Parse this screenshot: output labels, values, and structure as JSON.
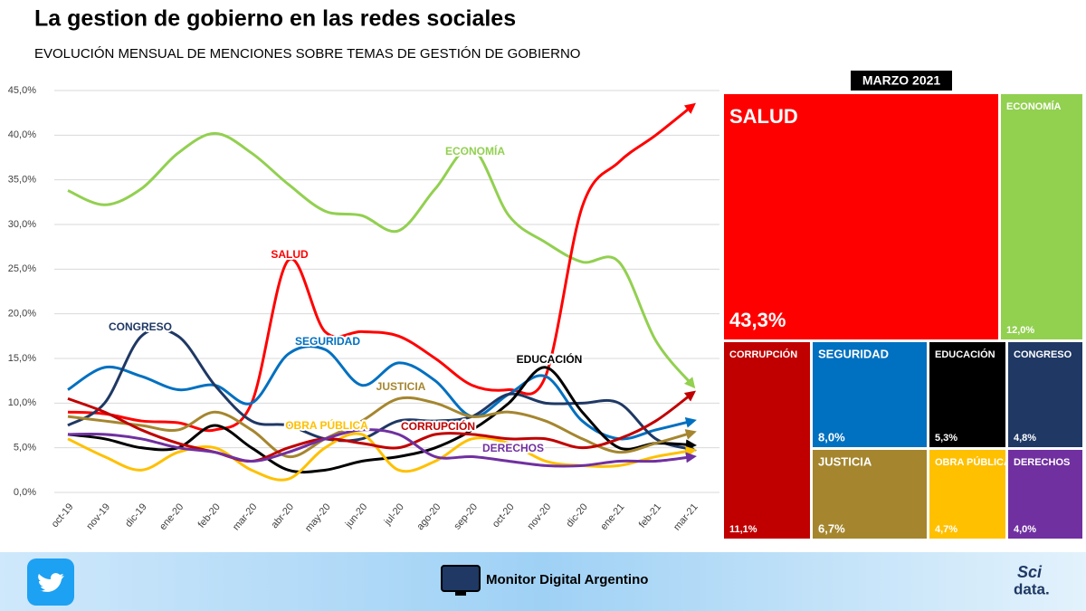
{
  "chart_data": [
    {
      "type": "line",
      "title": "La gestion de gobierno en las redes sociales",
      "subtitle": "EVOLUCIÓN MENSUAL DE MENCIONES SOBRE TEMAS DE GESTIÓN DE GOBIERNO",
      "categories": [
        "oct-19",
        "nov-19",
        "dic-19",
        "ene-20",
        "feb-20",
        "mar-20",
        "abr-20",
        "may-20",
        "jun-20",
        "jul-20",
        "ago-20",
        "sep-20",
        "oct-20",
        "nov-20",
        "dic-20",
        "ene-21",
        "feb-21",
        "mar-21"
      ],
      "ylim": [
        0,
        45
      ],
      "yticks": [
        {
          "value": 0,
          "label": "0,0%"
        },
        {
          "value": 5,
          "label": "5,0%"
        },
        {
          "value": 10,
          "label": "10,0%"
        },
        {
          "value": 15,
          "label": "15,0%"
        },
        {
          "value": 20,
          "label": "20,0%"
        },
        {
          "value": 25,
          "label": "25,0%"
        },
        {
          "value": 30,
          "label": "30,0%"
        },
        {
          "value": 35,
          "label": "35,0%"
        },
        {
          "value": 40,
          "label": "40,0%"
        },
        {
          "value": 45,
          "label": "45,0%"
        }
      ],
      "grid": true,
      "series": [
        {
          "name": "ECONOMÍA",
          "color": "#92d050",
          "values": [
            33.8,
            32.2,
            34,
            38,
            40.2,
            38,
            34.5,
            31.5,
            31,
            29.3,
            34,
            38.5,
            31,
            28,
            25.8,
            25.8,
            17,
            12.0
          ]
        },
        {
          "name": "SALUD",
          "color": "#ff0000",
          "values": [
            9,
            8.8,
            8,
            7.8,
            7,
            10,
            26,
            18,
            18,
            17.5,
            15,
            12,
            11.5,
            13,
            32,
            37,
            40,
            43.3
          ]
        },
        {
          "name": "SEGURIDAD",
          "color": "#0070c0",
          "values": [
            11.5,
            14,
            13,
            11.5,
            12,
            10,
            15.5,
            16,
            12,
            14.5,
            12.5,
            8.5,
            11,
            13,
            8,
            6,
            7,
            8.0
          ]
        },
        {
          "name": "CONGRESO",
          "color": "#1f3864",
          "values": [
            7.5,
            10,
            17.5,
            17.5,
            12,
            8,
            7.5,
            6,
            6,
            8,
            8,
            8.5,
            11,
            10,
            10,
            10,
            6,
            4.8
          ]
        },
        {
          "name": "EDUCACIÓN",
          "color": "#000000",
          "values": [
            6.5,
            6,
            5,
            5,
            7.5,
            5,
            2.5,
            2.5,
            3.5,
            4,
            5,
            7,
            10,
            14,
            9,
            5,
            5.5,
            5.3
          ]
        },
        {
          "name": "JUSTICIA",
          "color": "#a5862f",
          "values": [
            8.5,
            8,
            7.5,
            7,
            9,
            7,
            4,
            6,
            8,
            10.5,
            10,
            8.5,
            9,
            8,
            6,
            4.5,
            5.5,
            6.7
          ]
        },
        {
          "name": "OBRA PÚBLICA",
          "color": "#ffc000",
          "values": [
            6,
            4,
            2.5,
            4.5,
            5,
            2.5,
            1.5,
            5,
            6.5,
            2.5,
            3.5,
            6,
            5.5,
            3.5,
            3,
            3,
            4,
            4.7
          ]
        },
        {
          "name": "CORRUPCIÓN",
          "color": "#c00000",
          "values": [
            10.5,
            9,
            7,
            5.5,
            4.5,
            3.5,
            5,
            6,
            5.5,
            5,
            6.5,
            6.5,
            6,
            6,
            5,
            6,
            8,
            11.1
          ]
        },
        {
          "name": "DERECHOS",
          "color": "#7030a0",
          "values": [
            6.5,
            6.5,
            6,
            5,
            4.5,
            3.5,
            4.5,
            6,
            7,
            6.5,
            4,
            4,
            3.5,
            3,
            3,
            3.5,
            3.5,
            4.0
          ]
        }
      ]
    },
    {
      "type": "treemap",
      "title": "MARZO 2021",
      "categories": [
        "SALUD",
        "ECONOMÍA",
        "CORRUPCIÓN",
        "SEGURIDAD",
        "EDUCACIÓN",
        "CONGRESO",
        "JUSTICIA",
        "OBRA PÚBLICA",
        "DERECHOS"
      ],
      "values": [
        43.3,
        12.0,
        11.1,
        8.0,
        5.3,
        4.8,
        6.7,
        4.7,
        4.0
      ],
      "value_labels": [
        "43,3%",
        "12,0%",
        "11,1%",
        "8,0%",
        "5,3%",
        "4,8%",
        "6,7%",
        "4,7%",
        "4,0%"
      ],
      "colors": [
        "#ff0000",
        "#92d050",
        "#c00000",
        "#0070c0",
        "#000000",
        "#1f3864",
        "#a5862f",
        "#ffc000",
        "#7030a0"
      ]
    }
  ],
  "footer": {
    "brand": "Monitor Digital Argentino",
    "logo_top": "Sci",
    "logo_bottom": "data."
  }
}
